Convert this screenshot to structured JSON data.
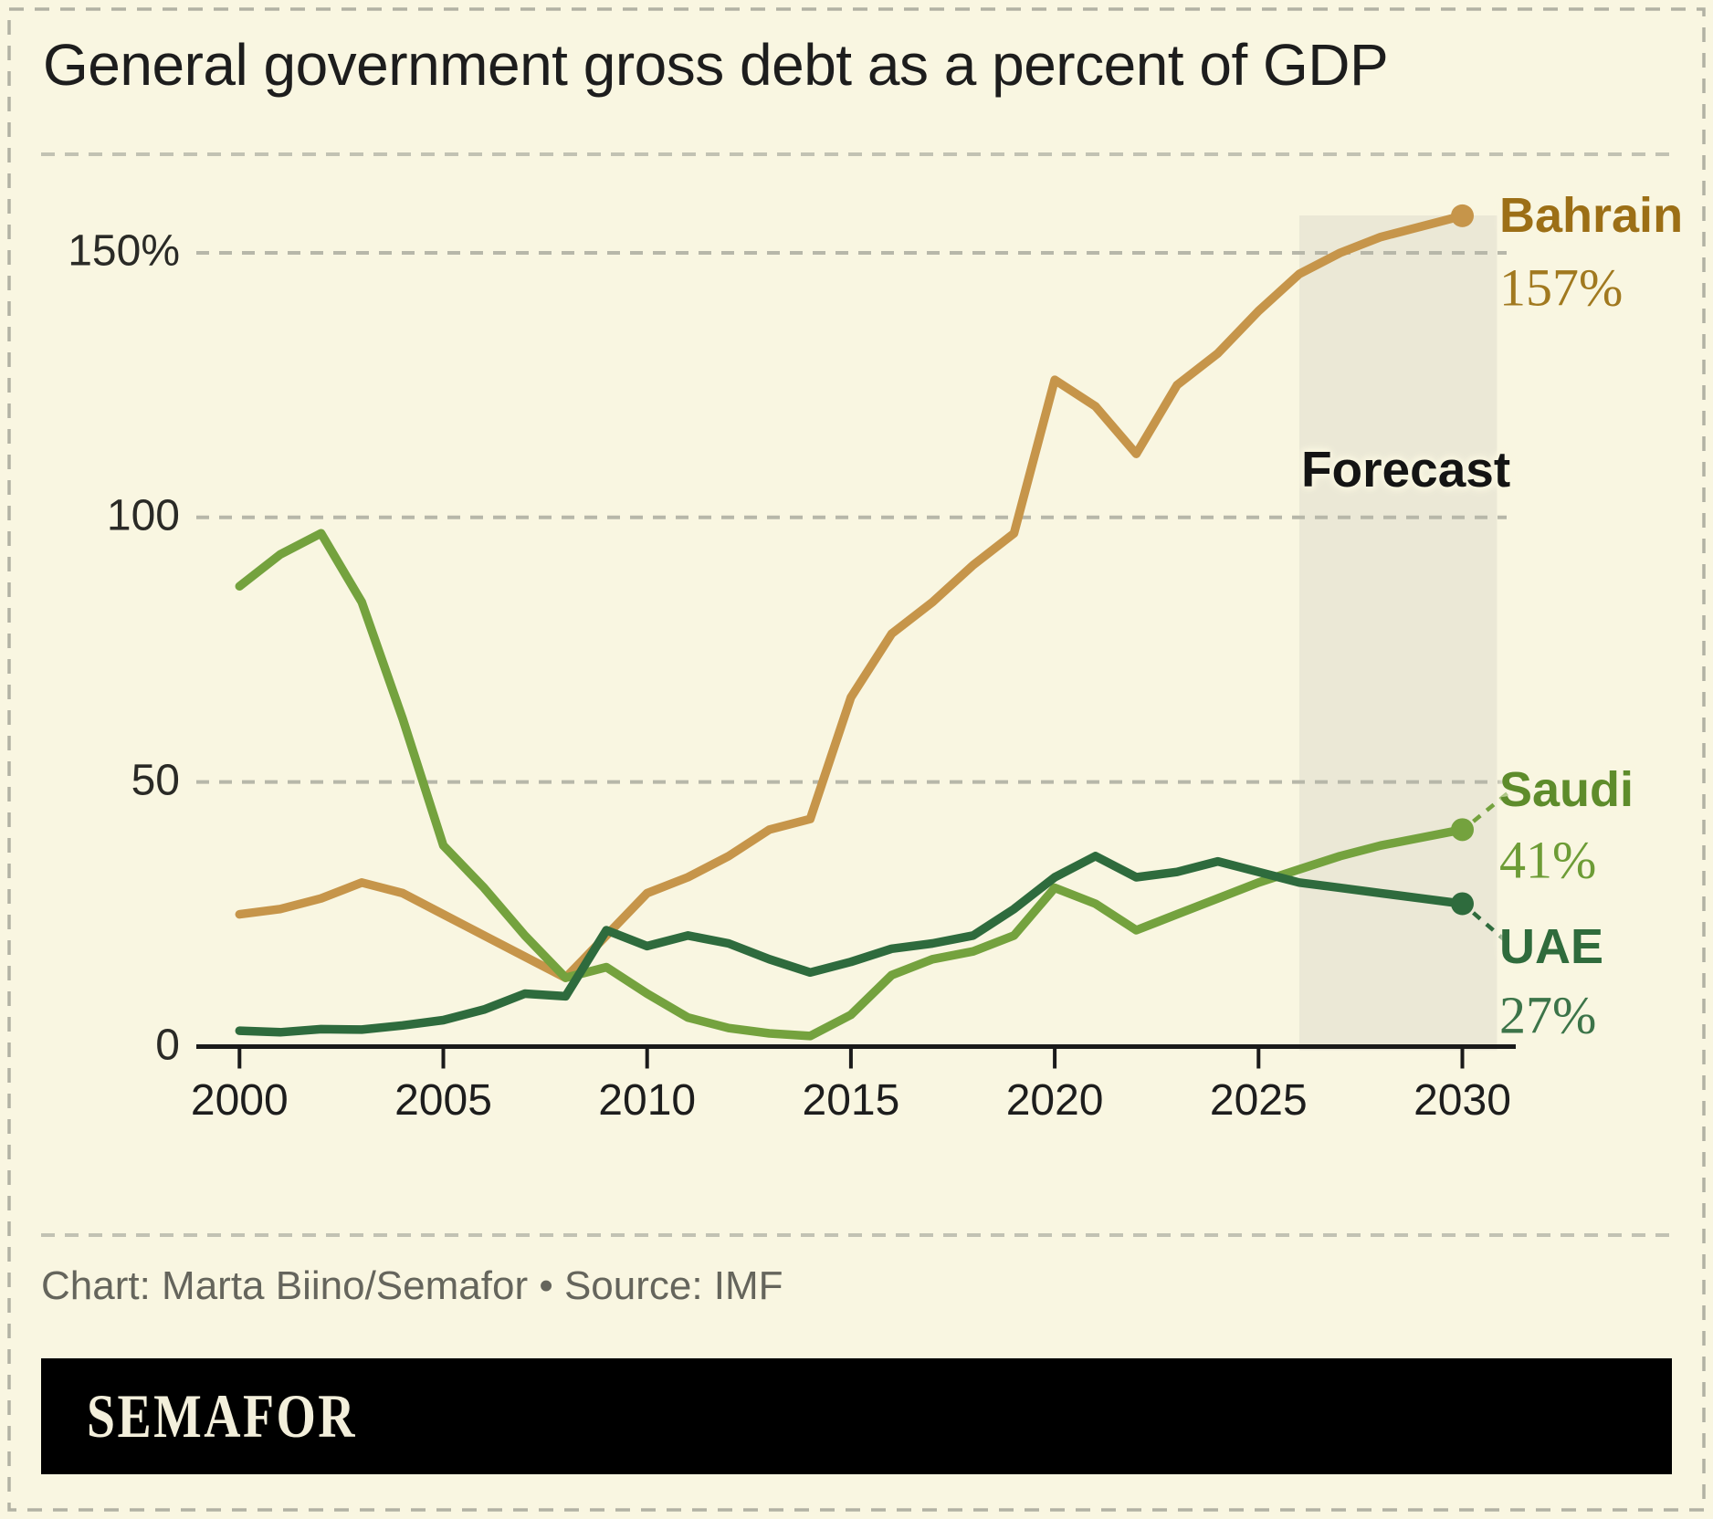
{
  "title": "General government gross debt as a percent of GDP",
  "accent_colors": {
    "background": "#f9f6e1",
    "forecast_band": "#ebe8d6",
    "gridline": "#b7b7a9",
    "axis": "#1a1a1a",
    "border_dash": "#b2b2a4",
    "separator_dash": "#c2c2b3"
  },
  "y_axis": {
    "ticks": [
      {
        "label": "150%",
        "value": 150
      },
      {
        "label": "100",
        "value": 100
      },
      {
        "label": "50",
        "value": 50
      },
      {
        "label": "0",
        "value": 0
      }
    ]
  },
  "x_axis": {
    "ticks": [
      {
        "label": "2000",
        "value": 2000
      },
      {
        "label": "2005",
        "value": 2005
      },
      {
        "label": "2010",
        "value": 2010
      },
      {
        "label": "2015",
        "value": 2015
      },
      {
        "label": "2020",
        "value": 2020
      },
      {
        "label": "2025",
        "value": 2025
      },
      {
        "label": "2030",
        "value": 2030
      }
    ]
  },
  "forecast": {
    "label": "Forecast",
    "start_year": 2026,
    "end_year": 2030.85
  },
  "chart_data": {
    "type": "line",
    "title": "General government gross debt as a percent of GDP",
    "xlabel": "",
    "ylabel": "",
    "ylim": [
      0,
      160
    ],
    "xlim": [
      2000,
      2030
    ],
    "grid": "horizontal-dashed",
    "legend_position": "end-of-line-labels-right",
    "x": [
      2000,
      2001,
      2002,
      2003,
      2004,
      2005,
      2006,
      2007,
      2008,
      2009,
      2010,
      2011,
      2012,
      2013,
      2014,
      2015,
      2016,
      2017,
      2018,
      2019,
      2020,
      2021,
      2022,
      2023,
      2024,
      2025,
      2026,
      2027,
      2028,
      2029,
      2030
    ],
    "series": [
      {
        "name": "Bahrain",
        "line_color": "#c6954a",
        "label_color": "#9c6f16",
        "value_color": "#a1791f",
        "end_value_label": "157%",
        "values": [
          25,
          26,
          28,
          31,
          29,
          25,
          21,
          17,
          13,
          21,
          29,
          32,
          36,
          41,
          43,
          66,
          78,
          84,
          91,
          97,
          126,
          121,
          112,
          125,
          131,
          139,
          146,
          150,
          153,
          155,
          157
        ]
      },
      {
        "name": "Saudi",
        "line_color": "#74a23e",
        "label_color": "#5e8c2b",
        "value_color": "#6d9c36",
        "end_value_label": "41%",
        "values": [
          87,
          93,
          97,
          84,
          62,
          38,
          30,
          21,
          13,
          15,
          10,
          5.5,
          3.5,
          2.5,
          2,
          6,
          13.5,
          16.5,
          18,
          21,
          30,
          27,
          22,
          25,
          28,
          31,
          33.5,
          36,
          38,
          39.5,
          41
        ]
      },
      {
        "name": "UAE",
        "line_color": "#2e6b3d",
        "label_color": "#2f6b3c",
        "value_color": "#3c7449",
        "end_value_label": "27%",
        "values": [
          3,
          2.7,
          3.3,
          3.2,
          4,
          5,
          7,
          10,
          9.5,
          22,
          19,
          21,
          19.5,
          16.5,
          14,
          16,
          18.5,
          19.5,
          21,
          26,
          32,
          36,
          32,
          33,
          35,
          33,
          31,
          30,
          29,
          28,
          27
        ]
      }
    ]
  },
  "footer": {
    "credit": "Chart: Marta Biino/Semafor • Source: IMF"
  },
  "logo": {
    "text": "SEMAFOR"
  }
}
